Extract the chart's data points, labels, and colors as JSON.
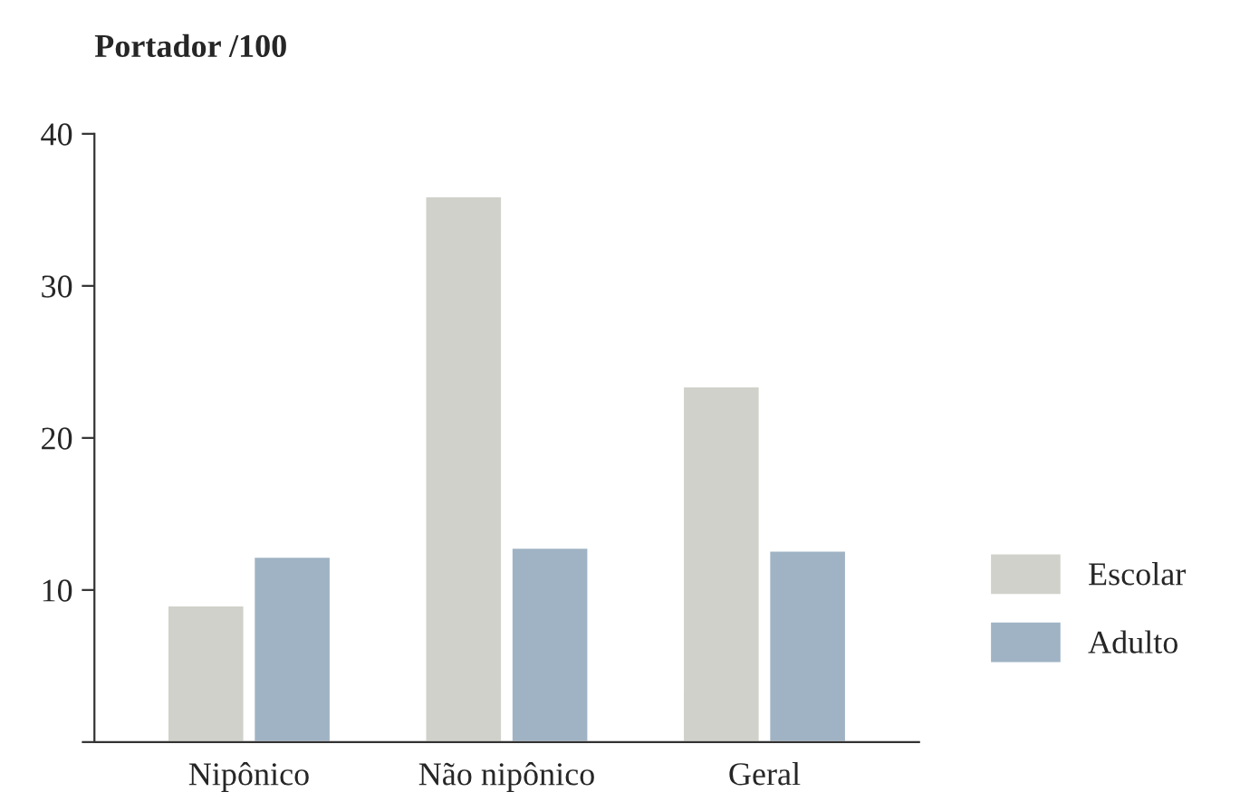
{
  "chart_data": {
    "type": "bar",
    "title": "Portador /100",
    "categories": [
      "Nipônico",
      "Não nipônico",
      "Geral"
    ],
    "series": [
      {
        "name": "Escolar",
        "color": "#d1d1cb",
        "values": [
          9.0,
          35.9,
          23.4
        ]
      },
      {
        "name": "Adulto",
        "color": "#9fb3c4",
        "values": [
          12.2,
          12.8,
          12.6
        ]
      }
    ],
    "ylim": [
      0,
      40
    ],
    "yticks": [
      {
        "value": 0,
        "label": null
      },
      10,
      20,
      30,
      40
    ],
    "grid": false,
    "legend": "right"
  }
}
